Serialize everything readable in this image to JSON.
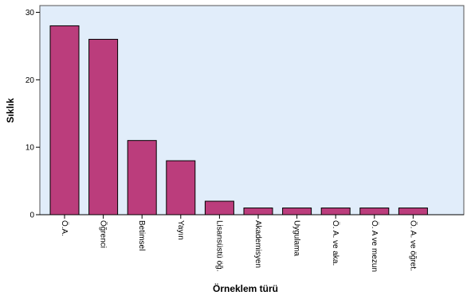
{
  "chart_data": {
    "type": "bar",
    "xlabel": "Örneklem türü",
    "ylabel": "Sıklık",
    "categories": [
      "Ö.A.",
      "Öğrenci",
      "Betimsel",
      "Yayın",
      "Lisansüstü öğ.",
      "Akademisyen",
      "Uygulama",
      "Ö. A. ve aka.",
      "Ö. A ve mezun",
      "Ö. A. ve öğret."
    ],
    "values": [
      28,
      26,
      11,
      8,
      2,
      1,
      1,
      1,
      1,
      1
    ],
    "ylim": [
      0,
      31
    ],
    "yticks": [
      0,
      10,
      20,
      30
    ],
    "grid": false,
    "colors": {
      "bar_fill": "#bb3d7c",
      "bar_stroke": "#000000",
      "plot_background": "#e1edfa",
      "axis": "#000000"
    }
  }
}
